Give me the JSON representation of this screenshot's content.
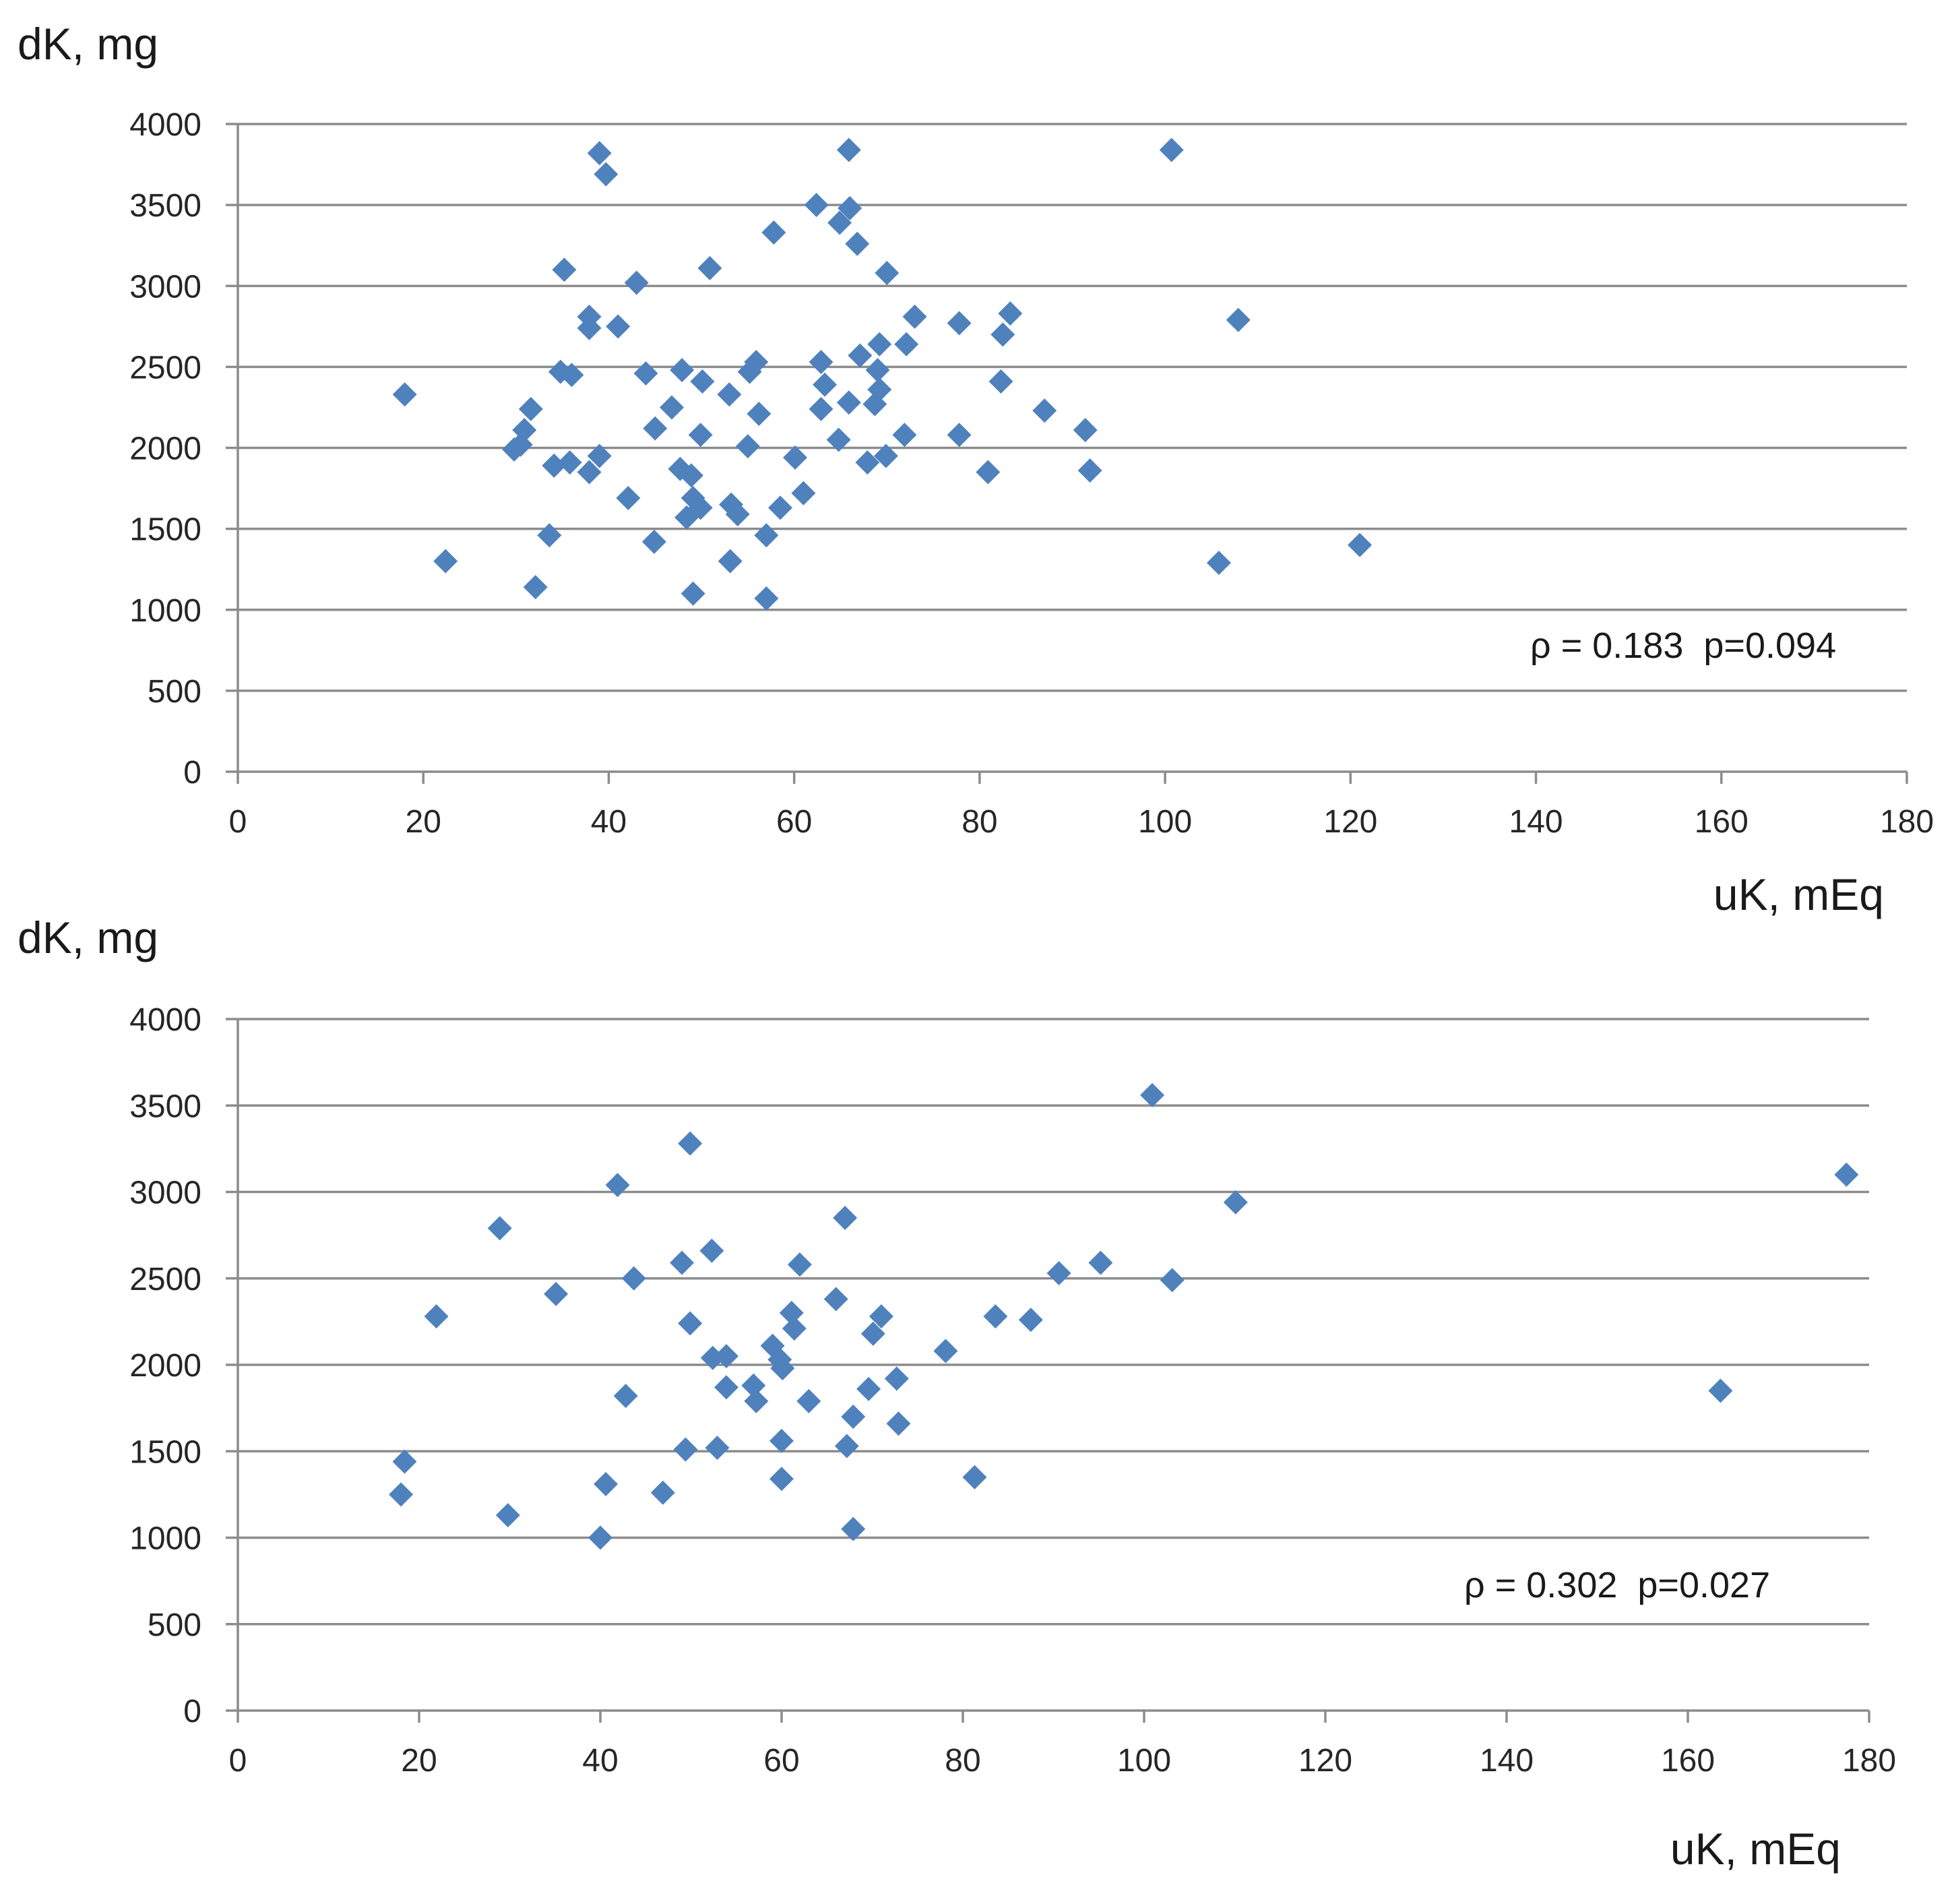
{
  "colors": {
    "marker": "#4F81BD",
    "grid": "#8C8C8C",
    "axis": "#8C8C8C"
  },
  "chart_data": [
    {
      "type": "scatter",
      "ylabel": "dK, mg",
      "xlabel": "uK, mEq",
      "annotation": "ρ = 0.183  p=0.094",
      "xlim": [
        0,
        180
      ],
      "ylim": [
        0,
        4000
      ],
      "x_ticks": [
        0,
        20,
        40,
        60,
        80,
        100,
        120,
        140,
        160,
        180
      ],
      "y_ticks": [
        0,
        500,
        1000,
        1500,
        2000,
        2500,
        3000,
        3500,
        4000
      ],
      "grid": true,
      "x": [
        18.0,
        22.4,
        31.6,
        30.9,
        30.5,
        29.8,
        32.1,
        33.6,
        34.1,
        34.8,
        35.2,
        36.0,
        35.8,
        37.9,
        37.9,
        37.9,
        39.0,
        39.7,
        39.0,
        41.0,
        42.1,
        43.0,
        44.0,
        45.0,
        44.9,
        46.8,
        47.9,
        47.7,
        48.9,
        49.1,
        48.4,
        49.1,
        49.9,
        49.9,
        50.1,
        50.9,
        53.0,
        53.2,
        53.9,
        53.1,
        55.0,
        55.2,
        55.9,
        56.2,
        57.0,
        57.0,
        57.8,
        58.5,
        60.1,
        61.0,
        62.4,
        62.9,
        62.9,
        63.3,
        64.8,
        64.9,
        65.9,
        66.0,
        65.9,
        66.8,
        67.1,
        67.9,
        68.7,
        69.0,
        69.2,
        69.2,
        69.9,
        70.0,
        71.9,
        72.1,
        73.0,
        77.8,
        77.8,
        80.9,
        82.3,
        82.5,
        83.3,
        87.0,
        91.4,
        91.9,
        100.7,
        105.8,
        107.9,
        121.0
      ],
      "y": [
        2330,
        1300,
        2240,
        2110,
        2020,
        1990,
        1140,
        1460,
        1890,
        2470,
        3100,
        2450,
        1910,
        1850,
        2810,
        2740,
        3820,
        3690,
        1950,
        2750,
        1690,
        3020,
        2460,
        2120,
        1420,
        2250,
        2480,
        1870,
        1830,
        1690,
        1570,
        1100,
        1630,
        2080,
        2410,
        3110,
        2330,
        1650,
        1590,
        1300,
        2010,
        2470,
        2530,
        2210,
        1460,
        1070,
        3330,
        1630,
        1940,
        1720,
        3500,
        2240,
        2530,
        2390,
        2050,
        3390,
        3840,
        3480,
        2280,
        3260,
        2570,
        1910,
        2270,
        2480,
        2360,
        2640,
        1950,
        3080,
        2080,
        2640,
        2810,
        2770,
        2080,
        1850,
        2410,
        2700,
        2830,
        2230,
        2110,
        1860,
        3840,
        1290,
        2790,
        1400
      ]
    },
    {
      "type": "scatter",
      "ylabel": "dK, mg",
      "xlabel": "uK, mEq",
      "annotation": "ρ = 0.302  p=0.027",
      "xlim": [
        0,
        180
      ],
      "ylim": [
        0,
        4000
      ],
      "x_ticks": [
        0,
        20,
        40,
        60,
        80,
        100,
        120,
        140,
        160,
        180
      ],
      "y_ticks": [
        0,
        500,
        1000,
        1500,
        2000,
        2500,
        3000,
        3500,
        4000
      ],
      "grid": true,
      "x": [
        18.0,
        18.4,
        21.9,
        28.9,
        29.8,
        35.1,
        40.0,
        40.6,
        41.9,
        42.8,
        43.7,
        46.9,
        49.0,
        49.4,
        49.9,
        49.9,
        52.3,
        52.4,
        52.9,
        53.9,
        53.9,
        56.9,
        57.2,
        59.0,
        59.8,
        60.1,
        60.0,
        60.0,
        61.1,
        61.4,
        62.0,
        63.0,
        66.0,
        67.0,
        67.2,
        67.9,
        67.9,
        69.6,
        70.1,
        71.0,
        72.7,
        72.9,
        78.1,
        81.3,
        83.6,
        87.5,
        90.6,
        95.2,
        100.9,
        103.1,
        110.1,
        163.6,
        177.5
      ],
      "y": [
        1250,
        1440,
        2280,
        2790,
        1130,
        2410,
        1000,
        1310,
        3040,
        1820,
        2500,
        1260,
        2590,
        1510,
        3280,
        2240,
        2660,
        2040,
        1520,
        2050,
        1870,
        1880,
        1790,
        2110,
        2030,
        1980,
        1560,
        1340,
        2300,
        2210,
        2580,
        1790,
        2380,
        2850,
        1530,
        1700,
        1050,
        1860,
        2180,
        2280,
        1920,
        1660,
        2080,
        1350,
        2280,
        2260,
        2530,
        2590,
        3560,
        2490,
        2940,
        1850,
        3100
      ]
    }
  ]
}
